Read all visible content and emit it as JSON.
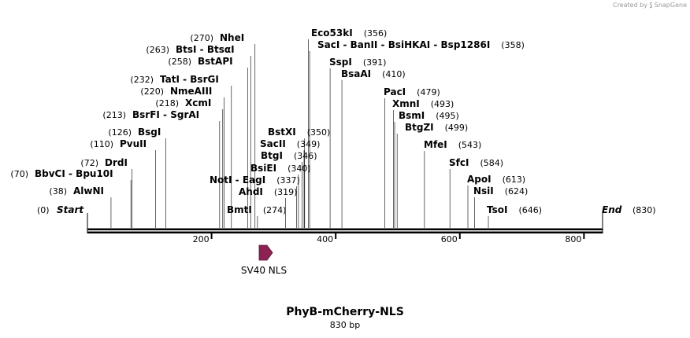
{
  "watermark": {
    "prefix": "Created by",
    "product": "SnapGene"
  },
  "sequence": {
    "name": "PhyB-mCherry-NLS",
    "length_label": "830 bp",
    "length": 830
  },
  "ends": {
    "start_label": "Start",
    "start_pos": "(0)",
    "end_label": "End",
    "end_pos": "(830)"
  },
  "axis": {
    "ticks": [
      200,
      400,
      600,
      800
    ]
  },
  "feature": {
    "name": "SV40 NLS",
    "color": "#8b2252"
  },
  "sites": [
    {
      "name": "AlwNI",
      "pos": 38,
      "label": "(38)"
    },
    {
      "name": "BbvCI  -  Bpu10I",
      "pos": 70,
      "label": "(70)"
    },
    {
      "name": "DrdI",
      "pos": 72,
      "label": "(72)"
    },
    {
      "name": "PvuII",
      "pos": 110,
      "label": "(110)"
    },
    {
      "name": "BsgI",
      "pos": 126,
      "label": "(126)"
    },
    {
      "name": "BsrFI  -  SgrAI",
      "pos": 213,
      "label": "(213)"
    },
    {
      "name": "XcmI",
      "pos": 218,
      "label": "(218)"
    },
    {
      "name": "NmeAIII",
      "pos": 220,
      "label": "(220)"
    },
    {
      "name": "TatI  -  BsrGI",
      "pos": 232,
      "label": "(232)"
    },
    {
      "name": "BstAPI",
      "pos": 258,
      "label": "(258)"
    },
    {
      "name": "BtsI  -  BtsαI",
      "pos": 263,
      "label": "(263)"
    },
    {
      "name": "NheI",
      "pos": 270,
      "label": "(270)"
    },
    {
      "name": "BmtI",
      "pos": 274,
      "label": "(274)"
    },
    {
      "name": "AhdI",
      "pos": 319,
      "label": "(319)"
    },
    {
      "name": "NotI  -  EagI",
      "pos": 337,
      "label": "(337)"
    },
    {
      "name": "BsiEI",
      "pos": 340,
      "label": "(340)"
    },
    {
      "name": "BtgI",
      "pos": 346,
      "label": "(346)"
    },
    {
      "name": "SacII",
      "pos": 349,
      "label": "(349)"
    },
    {
      "name": "BstXI",
      "pos": 350,
      "label": "(350)"
    },
    {
      "name": "Eco53kI",
      "pos": 356,
      "label": "(356)"
    },
    {
      "name": "SacI  -  BanII  -  BsiHKAI  -  Bsp1286I",
      "pos": 358,
      "label": "(358)"
    },
    {
      "name": "SspI",
      "pos": 391,
      "label": "(391)"
    },
    {
      "name": "BsaAI",
      "pos": 410,
      "label": "(410)"
    },
    {
      "name": "PacI",
      "pos": 479,
      "label": "(479)"
    },
    {
      "name": "XmnI",
      "pos": 493,
      "label": "(493)"
    },
    {
      "name": "BsmI",
      "pos": 495,
      "label": "(495)"
    },
    {
      "name": "BtgZI",
      "pos": 499,
      "label": "(499)"
    },
    {
      "name": "MfeI",
      "pos": 543,
      "label": "(543)"
    },
    {
      "name": "SfcI",
      "pos": 584,
      "label": "(584)"
    },
    {
      "name": "ApoI",
      "pos": 613,
      "label": "(613)"
    },
    {
      "name": "NsiI",
      "pos": 624,
      "label": "(624)"
    },
    {
      "name": "TsoI",
      "pos": 646,
      "label": "(646)"
    }
  ]
}
